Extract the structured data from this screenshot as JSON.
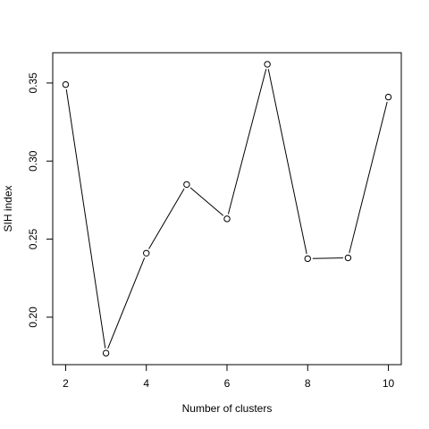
{
  "chart_data": {
    "type": "line",
    "xlabel": "Number of clusters",
    "ylabel": "SIH index",
    "x": [
      2,
      3,
      4,
      5,
      6,
      7,
      8,
      9,
      10
    ],
    "series": [
      {
        "values": [
          0.349,
          0.177,
          0.241,
          0.285,
          0.263,
          0.362,
          0.2375,
          0.238,
          0.341
        ]
      }
    ],
    "xlim": [
      1.68,
      10.32
    ],
    "ylim": [
      0.1696,
      0.3694
    ],
    "xticks": [
      2,
      4,
      6,
      8,
      10
    ],
    "yticks": [
      0.2,
      0.25,
      0.3,
      0.35
    ],
    "xtick_labels": [
      "2",
      "4",
      "6",
      "8",
      "10"
    ],
    "ytick_labels": [
      "0.20",
      "0.25",
      "0.30",
      "0.35"
    ],
    "grid": false,
    "marker": "open-circle",
    "line_color": "#000000"
  }
}
